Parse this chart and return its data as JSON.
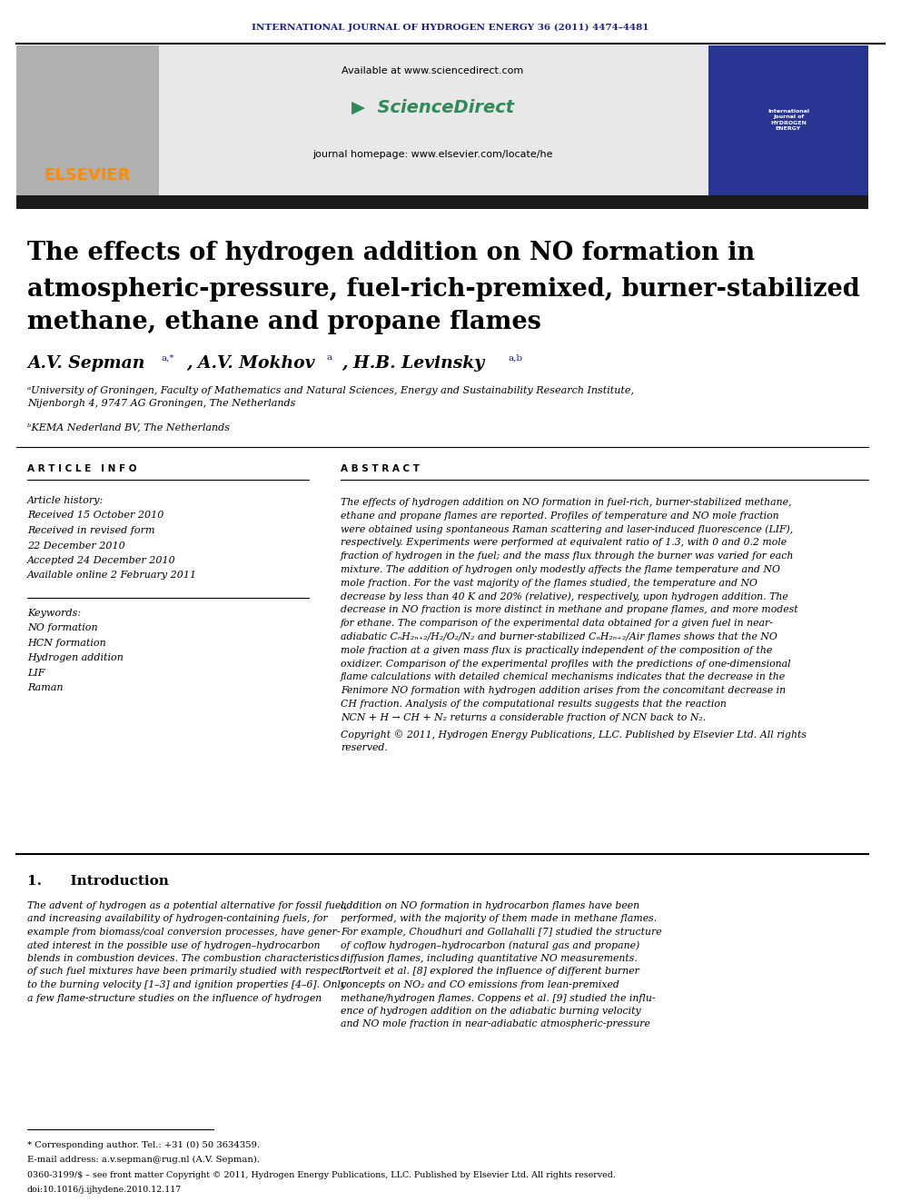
{
  "journal_header": "INTERNATIONAL JOURNAL OF HYDROGEN ENERGY 36 (2011) 4474–4481",
  "journal_header_color": "#1a237e",
  "sd_url": "Available at www.sciencedirect.com",
  "journal_homepage": "journal homepage: www.elsevier.com/locate/he",
  "title_line1": "The effects of hydrogen addition on NO formation in",
  "title_line2": "atmospheric-pressure, fuel-rich-premixed, burner-stabilized",
  "title_line3": "methane, ethane and propane flames",
  "author1": "A.V. Sepman",
  "author1_sup": "a,*",
  "author2": ", A.V. Mokhov",
  "author2_sup": "a",
  "author3": ", H.B. Levinsky",
  "author3_sup": "a,b",
  "affil_a": "ᵃUniversity of Groningen, Faculty of Mathematics and Natural Sciences, Energy and Sustainability Research Institute,\nNijenborgh 4, 9747 AG Groningen, The Netherlands",
  "affil_b": "ᵇKEMA Nederland BV, The Netherlands",
  "article_info_header": "A R T I C L E   I N F O",
  "abstract_header": "A B S T R A C T",
  "article_history_label": "Article history:",
  "received1": "Received 15 October 2010",
  "received2a": "Received in revised form",
  "received2b": "22 December 2010",
  "accepted": "Accepted 24 December 2010",
  "available": "Available online 2 February 2011",
  "keywords_label": "Keywords:",
  "keywords": [
    "NO formation",
    "HCN formation",
    "Hydrogen addition",
    "LIF",
    "Raman"
  ],
  "abstract_lines": [
    "The effects of hydrogen addition on NO formation in fuel-rich, burner-stabilized methane,",
    "ethane and propane flames are reported. Profiles of temperature and NO mole fraction",
    "were obtained using spontaneous Raman scattering and laser-induced fluorescence (LIF),",
    "respectively. Experiments were performed at equivalent ratio of 1.3, with 0 and 0.2 mole",
    "fraction of hydrogen in the fuel; and the mass flux through the burner was varied for each",
    "mixture. The addition of hydrogen only modestly affects the flame temperature and NO",
    "mole fraction. For the vast majority of the flames studied, the temperature and NO",
    "decrease by less than 40 K and 20% (relative), respectively, upon hydrogen addition. The",
    "decrease in NO fraction is more distinct in methane and propane flames, and more modest",
    "for ethane. The comparison of the experimental data obtained for a given fuel in near-",
    "adiabatic CₙH₂ₙ₊₂/H₂/O₂/N₂ and burner-stabilized CₙH₂ₙ₊₂/Air flames shows that the NO",
    "mole fraction at a given mass flux is practically independent of the composition of the",
    "oxidizer. Comparison of the experimental profiles with the predictions of one-dimensional",
    "flame calculations with detailed chemical mechanisms indicates that the decrease in the",
    "Fenimore NO formation with hydrogen addition arises from the concomitant decrease in",
    "CH fraction. Analysis of the computational results suggests that the reaction",
    "NCN + H → CH + N₂ returns a considerable fraction of NCN back to N₂."
  ],
  "copyright_lines": [
    "Copyright © 2011, Hydrogen Energy Publications, LLC. Published by Elsevier Ltd. All rights",
    "reserved."
  ],
  "section_title": "1.      Introduction",
  "intro_left_lines": [
    "The advent of hydrogen as a potential alternative for fossil fuel,",
    "and increasing availability of hydrogen-containing fuels, for",
    "example from biomass/coal conversion processes, have gener-",
    "ated interest in the possible use of hydrogen–hydrocarbon",
    "blends in combustion devices. The combustion characteristics",
    "of such fuel mixtures have been primarily studied with respect",
    "to the burning velocity [1–3] and ignition properties [4–6]. Only",
    "a few flame-structure studies on the influence of hydrogen"
  ],
  "intro_right_lines": [
    "addition on NO formation in hydrocarbon flames have been",
    "performed, with the majority of them made in methane flames.",
    "For example, Choudhuri and Gollahalli [7] studied the structure",
    "of coflow hydrogen–hydrocarbon (natural gas and propane)",
    "diffusion flames, including quantitative NO measurements.",
    "Rortveit et al. [8] explored the influence of different burner",
    "concepts on NO₂ and CO emissions from lean-premixed",
    "methane/hydrogen flames. Coppens et al. [9] studied the influ-",
    "ence of hydrogen addition on the adiabatic burning velocity",
    "and NO mole fraction in near-adiabatic atmospheric-pressure"
  ],
  "footnote_star": "* Corresponding author. Tel.: +31 (0) 50 3634359.",
  "footnote_email": "E-mail address: a.v.sepman@rug.nl (A.V. Sepman).",
  "footnote_issn": "0360-3199/$ – see front matter Copyright © 2011, Hydrogen Energy Publications, LLC. Published by Elsevier Ltd. All rights reserved.",
  "footnote_doi": "doi:10.1016/j.ijhydene.2010.12.117",
  "elsevier_color": "#FF8C00",
  "header_bg_color": "#e8e8e8",
  "black_bar_color": "#1a1a1a",
  "link_color": "#1a237e"
}
